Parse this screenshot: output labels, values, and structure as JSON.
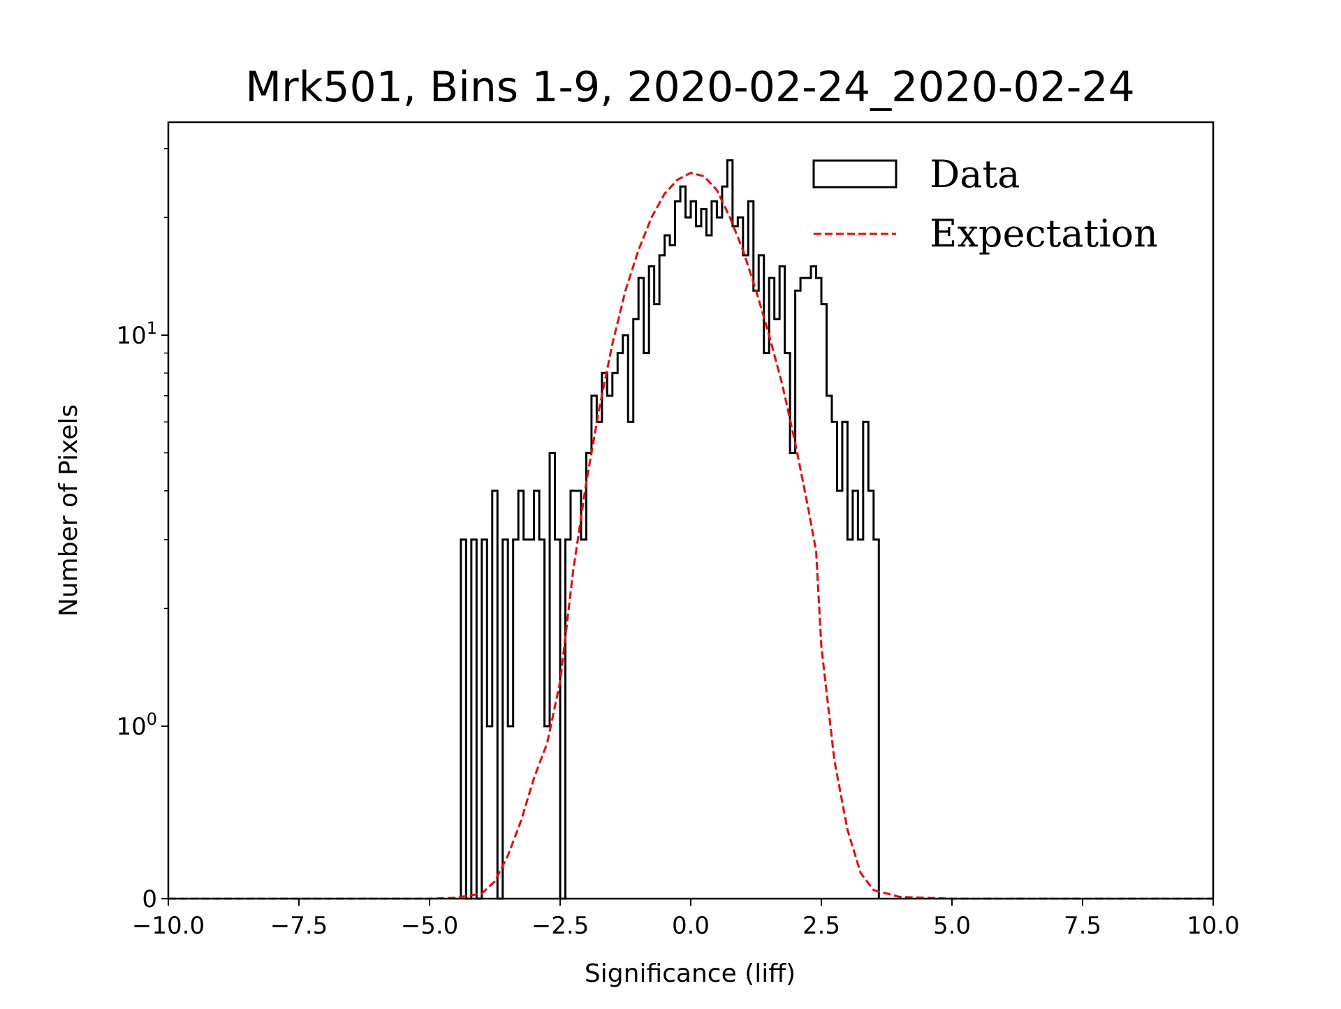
{
  "chart_data": {
    "type": "histogram",
    "title": "Mrk501, Bins 1-9, 2020-02-24_2020-02-24",
    "xlabel": "Significance (liff)",
    "ylabel": "Number of Pixels",
    "xlim": [
      -10,
      10
    ],
    "yscale": "symlog",
    "ylim": [
      0,
      35
    ],
    "xticks": [
      "−10.0",
      "−7.5",
      "−5.0",
      "−2.5",
      "0.0",
      "2.5",
      "5.0",
      "7.5",
      "10.0"
    ],
    "xtick_values": [
      -10,
      -7.5,
      -5,
      -2.5,
      0,
      2.5,
      5,
      7.5,
      10
    ],
    "yticks": [
      {
        "value": 0,
        "label": "0",
        "exp": ""
      },
      {
        "value": 1,
        "label": "10",
        "exp": "0"
      },
      {
        "value": 10,
        "label": "10",
        "exp": "1"
      }
    ],
    "legend": {
      "position": "top-right",
      "entries": [
        "Data",
        "Expectation"
      ]
    },
    "series": [
      {
        "name": "Data",
        "kind": "step-histogram",
        "color": "#000000",
        "bin_start": -4.4,
        "bin_width": 0.1,
        "counts": [
          3,
          0,
          3,
          0,
          3,
          1,
          4,
          0,
          3,
          1,
          3,
          4,
          3,
          3,
          4,
          3,
          1,
          5,
          3,
          0,
          3,
          4,
          4,
          3,
          5,
          7,
          6,
          8,
          7,
          8,
          9,
          10,
          6,
          11,
          14,
          9,
          15,
          12,
          16,
          18,
          17,
          22,
          24,
          20,
          22,
          19,
          21,
          18,
          22,
          20,
          24,
          28,
          19,
          20,
          16,
          22,
          13,
          16,
          9,
          14,
          11,
          15,
          9,
          5,
          13,
          14,
          14,
          15,
          14,
          12,
          7,
          6,
          4,
          6,
          3,
          4,
          3,
          6,
          4,
          3
        ]
      },
      {
        "name": "Expectation",
        "kind": "dashed-line",
        "color": "#ff0000",
        "x": [
          -10,
          -5,
          -4.5,
          -4.0,
          -3.75,
          -3.5,
          -3.25,
          -3.0,
          -2.75,
          -2.5,
          -2.25,
          -2.0,
          -1.75,
          -1.5,
          -1.25,
          -1.0,
          -0.75,
          -0.5,
          -0.25,
          0,
          0.25,
          0.5,
          0.75,
          1.0,
          1.25,
          1.5,
          1.75,
          2.0,
          2.25,
          2.4,
          2.5,
          2.75,
          3.0,
          3.25,
          3.5,
          4.0,
          5,
          10
        ],
        "y": [
          0,
          0,
          0.005,
          0.03,
          0.1,
          0.25,
          0.45,
          0.7,
          0.9,
          1.3,
          2.5,
          4.2,
          6.5,
          9.5,
          13,
          16.5,
          20,
          23,
          25,
          26,
          25.5,
          23.5,
          20,
          16.5,
          13,
          10,
          7.5,
          5.3,
          3.6,
          2.8,
          1.6,
          0.8,
          0.4,
          0.15,
          0.05,
          0.01,
          0,
          0
        ]
      }
    ]
  }
}
